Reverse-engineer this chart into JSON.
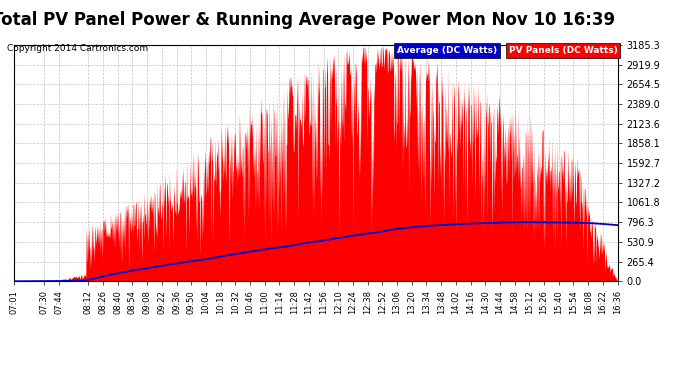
{
  "title": "Total PV Panel Power & Running Average Power Mon Nov 10 16:39",
  "copyright": "Copyright 2014 Cartronics.com",
  "legend_avg": "Average (DC Watts)",
  "legend_pv": "PV Panels (DC Watts)",
  "ylabel_values": [
    0.0,
    265.4,
    530.9,
    796.3,
    1061.8,
    1327.2,
    1592.7,
    1858.1,
    2123.6,
    2389.0,
    2654.5,
    2919.9,
    3185.3
  ],
  "ymax": 3185.3,
  "ymin": 0.0,
  "bg_color": "#ffffff",
  "grid_color": "#bbbbbb",
  "pv_color": "#ff0000",
  "avg_color": "#0000cc",
  "title_fontsize": 12,
  "copyright_fontsize": 6.5,
  "tick_fontsize": 6,
  "ytick_fontsize": 7,
  "xtick_labels": [
    "07:01",
    "07:30",
    "07:44",
    "08:12",
    "08:26",
    "08:40",
    "08:54",
    "09:08",
    "09:22",
    "09:36",
    "09:50",
    "10:04",
    "10:18",
    "10:32",
    "10:46",
    "11:00",
    "11:14",
    "11:28",
    "11:42",
    "11:56",
    "12:10",
    "12:24",
    "12:38",
    "12:52",
    "13:06",
    "13:20",
    "13:34",
    "13:48",
    "14:02",
    "14:16",
    "14:30",
    "14:44",
    "14:58",
    "15:12",
    "15:26",
    "15:40",
    "15:54",
    "16:08",
    "16:22",
    "16:36"
  ]
}
